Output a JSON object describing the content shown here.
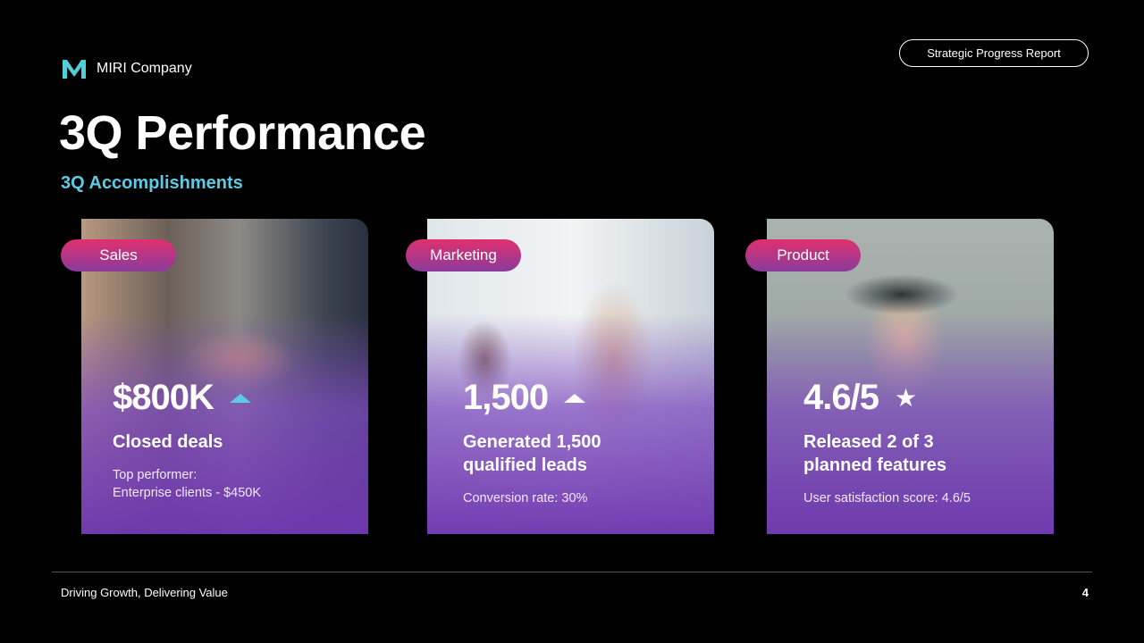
{
  "header": {
    "company": "MIRI Company",
    "report_badge": "Strategic Progress Report"
  },
  "title": "3Q Performance",
  "subtitle": "3Q Accomplishments",
  "colors": {
    "accent": "#5ccbe6",
    "pill_top": "#e0306e",
    "pill_bottom": "#8a3b9c",
    "card_overlay": "#7a48b8"
  },
  "cards": [
    {
      "tag": "Sales",
      "metric": "$800K",
      "icon": "triangle-up-icon",
      "label": "Closed deals",
      "detail_line1": "Top performer:",
      "detail_line2": "Enterprise clients - $450K"
    },
    {
      "tag": "Marketing",
      "metric": "1,500",
      "icon": "triangle-up-icon",
      "label_line1": "Generated 1,500",
      "label_line2": "qualified leads",
      "detail_line1": "Conversion rate: 30%"
    },
    {
      "tag": "Product",
      "metric": "4.6/5",
      "icon": "star-icon",
      "label_line1": "Released 2 of 3",
      "label_line2": "planned features",
      "detail_line1": "User satisfaction score: 4.6/5"
    }
  ],
  "footer": {
    "tagline": "Driving Growth, Delivering Value",
    "page_number": "4"
  }
}
